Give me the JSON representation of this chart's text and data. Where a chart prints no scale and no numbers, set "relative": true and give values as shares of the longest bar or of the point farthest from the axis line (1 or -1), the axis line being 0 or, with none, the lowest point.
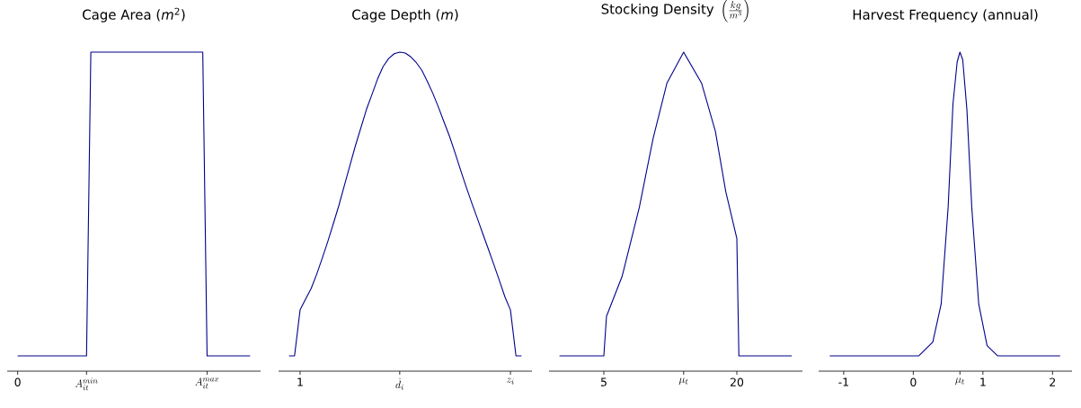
{
  "chart_data": [
    {
      "type": "line",
      "title": "Cage Area (*m*$^{2}$)",
      "relative": true,
      "color": "#00008b",
      "categories": [
        "0",
        null,
        null,
        null,
        null,
        null,
        null,
        null,
        null,
        null,
        null,
        null,
        null,
        null,
        null,
        null,
        "A_{it}^{min}",
        null,
        null,
        null,
        null,
        null,
        null,
        null,
        null,
        null,
        null,
        null,
        null,
        null,
        null,
        null,
        null,
        null,
        null,
        null,
        null,
        null,
        null,
        null,
        null,
        null,
        null,
        null,
        "A_{it}^{max}",
        null,
        null,
        null,
        null,
        null,
        null,
        null,
        null,
        null,
        null
      ],
      "values": [
        0.048,
        0.048,
        0.048,
        0.048,
        0.048,
        0.048,
        0.048,
        0.048,
        0.048,
        0.048,
        0.048,
        0.048,
        0.048,
        0.048,
        0.048,
        0.048,
        0.048,
        1,
        1,
        1,
        1,
        1,
        1,
        1,
        1,
        1,
        1,
        1,
        1,
        1,
        1,
        1,
        1,
        1,
        1,
        1,
        1,
        1,
        1,
        1,
        1,
        1,
        1,
        1,
        0.048,
        0.048,
        0.048,
        0.048,
        0.048,
        0.048,
        0.048,
        0.048,
        0.048,
        0.048,
        0.048
      ]
    },
    {
      "type": "line",
      "title": "Cage Depth (*m*)",
      "relative": true,
      "color": "#00008b",
      "categories": [
        null,
        null,
        "1",
        null,
        null,
        null,
        null,
        null,
        null,
        null,
        null,
        null,
        null,
        null,
        null,
        null,
        null,
        null,
        null,
        null,
        "\\hat{d}_i",
        null,
        null,
        null,
        null,
        null,
        null,
        null,
        null,
        null,
        null,
        null,
        null,
        null,
        null,
        null,
        null,
        null,
        null,
        null,
        "z_i",
        null,
        null
      ],
      "values": [
        0.048,
        0.048,
        0.192,
        0.226,
        0.259,
        0.304,
        0.354,
        0.406,
        0.462,
        0.519,
        0.582,
        0.645,
        0.707,
        0.764,
        0.821,
        0.868,
        0.916,
        0.955,
        0.98,
        0.995,
        1,
        0.997,
        0.985,
        0.967,
        0.943,
        0.908,
        0.87,
        0.827,
        0.781,
        0.736,
        0.684,
        0.63,
        0.578,
        0.528,
        0.48,
        0.431,
        0.383,
        0.334,
        0.284,
        0.233,
        0.192,
        0.048,
        0.048
      ]
    },
    {
      "type": "line",
      "title": "\\text{Stocking Density }\\left(\\frac{kg}{m^{3}}\\right)",
      "relative": true,
      "color": "#00008b",
      "x": [
        0,
        5.0,
        5.3,
        7.06,
        9.0,
        10.56,
        12.12,
        14.0,
        16.02,
        17.58,
        18.75,
        20.0,
        20.23,
        26.2
      ],
      "values": [
        0.048,
        0.048,
        0.172,
        0.297,
        0.513,
        0.73,
        0.903,
        1,
        0.903,
        0.752,
        0.563,
        0.416,
        0.048,
        0.048
      ],
      "xlim": [
        -1.18,
        27.4
      ],
      "xticks": [
        5,
        {
          "value": 14.0,
          "label": "\\mu_t"
        },
        20
      ]
    },
    {
      "type": "line",
      "title": "Harvest Frequency (annual)",
      "relative": true,
      "color": "#00008b",
      "x": [
        -1.2,
        0.08,
        0.28,
        0.4,
        0.5,
        0.57,
        0.63,
        0.67,
        0.71,
        0.77,
        0.84,
        0.94,
        1.06,
        1.21,
        2.11
      ],
      "values": [
        0.048,
        0.048,
        0.091,
        0.21,
        0.513,
        0.838,
        0.969,
        1,
        0.976,
        0.82,
        0.513,
        0.21,
        0.08,
        0.048,
        0.048
      ],
      "xlim": [
        -1.36,
        2.28
      ],
      "xticks": [
        -1,
        0,
        {
          "value": 0.67,
          "label": "\\mu_t"
        },
        1,
        2
      ]
    }
  ]
}
